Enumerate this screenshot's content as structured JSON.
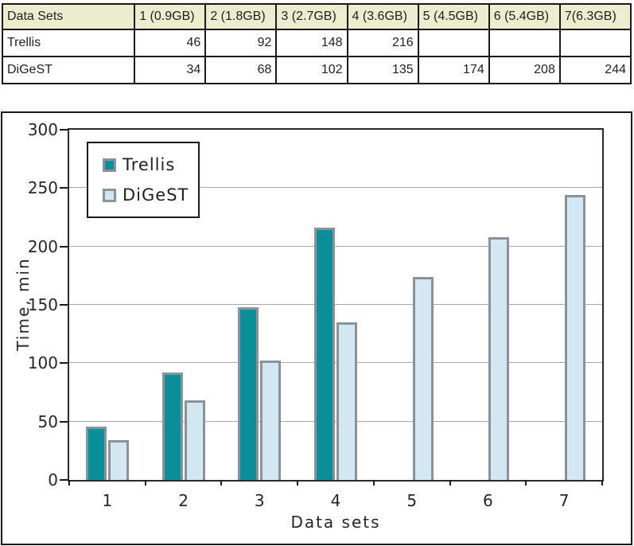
{
  "table": {
    "header": [
      "Data Sets",
      "1 (0.9GB)",
      "2 (1.8GB)",
      "3 (2.7GB)",
      "4 (3.6GB)",
      "5 (4.5GB)",
      "6 (5.4GB)",
      "7(6.3GB)"
    ],
    "rows": [
      {
        "label": "Trellis",
        "values": [
          "46",
          "92",
          "148",
          "216",
          "",
          "",
          ""
        ]
      },
      {
        "label": "DiGeST",
        "values": [
          "34",
          "68",
          "102",
          "135",
          "174",
          "208",
          "244"
        ]
      }
    ],
    "header_bg": "#ecedcf"
  },
  "chart_data": {
    "type": "bar",
    "title": "",
    "categories": [
      "1",
      "2",
      "3",
      "4",
      "5",
      "6",
      "7"
    ],
    "series": [
      {
        "name": "Trellis",
        "color": "#0a8f99",
        "values": [
          46,
          92,
          148,
          216,
          null,
          null,
          null
        ]
      },
      {
        "name": "DiGeST",
        "color": "#d2e7f2",
        "values": [
          34,
          68,
          102,
          135,
          174,
          208,
          244
        ]
      }
    ],
    "xlabel": "Data sets",
    "ylabel": "Time, min",
    "ylim": [
      0,
      300
    ],
    "ytick_step": 50,
    "grid": true,
    "legend_position": "top-left",
    "bar_border_color": "#8b9299",
    "grid_color": "#a8a8a8",
    "axis_color": "#2b2b2b"
  }
}
